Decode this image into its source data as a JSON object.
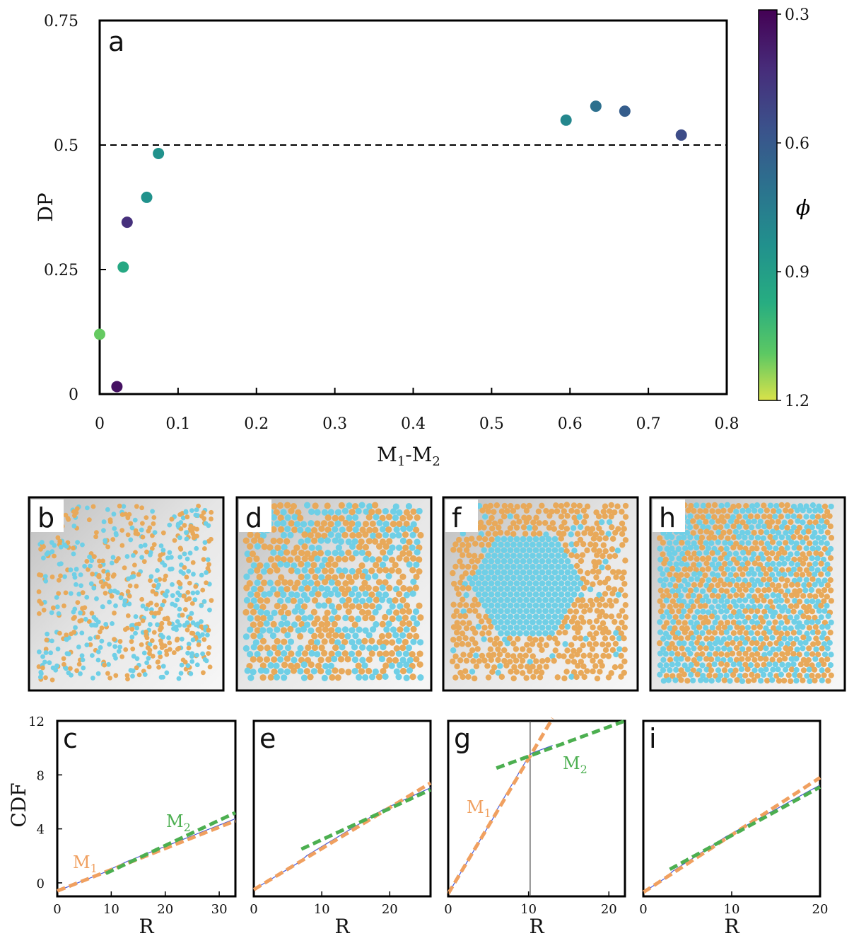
{
  "chart_data": [
    {
      "panel": "a",
      "type": "scatter",
      "xlabel": "M₁-M₂",
      "ylabel": "DP",
      "xlim": [
        0,
        0.8
      ],
      "ylim": [
        0,
        0.75
      ],
      "xticks": [
        "0",
        "0.1",
        "0.2",
        "0.3",
        "0.4",
        "0.5",
        "0.6",
        "0.7",
        "0.8"
      ],
      "yticks": [
        "0",
        "0.25",
        "0.5",
        "0.75"
      ],
      "reference_line": {
        "y": 0.5,
        "style": "dashed"
      },
      "colorbar": {
        "label": "ϕ",
        "range": [
          0.3,
          1.2
        ],
        "ticks": [
          "0.3",
          "0.6",
          "0.9",
          "1.2"
        ],
        "colormap": "viridis"
      },
      "points": [
        {
          "x": 0.0,
          "y": 0.12,
          "phi": 1.1
        },
        {
          "x": 0.022,
          "y": 0.015,
          "phi": 0.35
        },
        {
          "x": 0.03,
          "y": 0.255,
          "phi": 0.95
        },
        {
          "x": 0.035,
          "y": 0.345,
          "phi": 0.45
        },
        {
          "x": 0.06,
          "y": 0.395,
          "phi": 0.85
        },
        {
          "x": 0.075,
          "y": 0.483,
          "phi": 0.85
        },
        {
          "x": 0.595,
          "y": 0.55,
          "phi": 0.8
        },
        {
          "x": 0.633,
          "y": 0.578,
          "phi": 0.7
        },
        {
          "x": 0.67,
          "y": 0.568,
          "phi": 0.62
        },
        {
          "x": 0.742,
          "y": 0.52,
          "phi": 0.55
        }
      ]
    },
    {
      "panel": "c",
      "type": "line",
      "xlabel": "R",
      "ylabel": "CDF",
      "xlim": [
        0,
        33
      ],
      "ylim": [
        -1,
        12
      ],
      "xticks": [
        "0",
        "10",
        "20",
        "30"
      ],
      "yticks": [
        "0",
        "4",
        "8",
        "12"
      ],
      "labels": [
        "M₁",
        "M₂"
      ],
      "fits": {
        "M1": {
          "x": [
            0,
            33
          ],
          "y": [
            -0.6,
            4.6
          ]
        },
        "M2": {
          "x": [
            9,
            33
          ],
          "y": [
            0.7,
            5.2
          ]
        }
      }
    },
    {
      "panel": "e",
      "type": "line",
      "xlabel": "R",
      "xlim": [
        0,
        26
      ],
      "ylim": [
        -1,
        12
      ],
      "xticks": [
        "0",
        "10",
        "20"
      ],
      "fits": {
        "M1": {
          "x": [
            0,
            26
          ],
          "y": [
            -0.5,
            7.4
          ]
        },
        "M2": {
          "x": [
            7,
            26
          ],
          "y": [
            2.5,
            6.9
          ]
        }
      }
    },
    {
      "panel": "g",
      "type": "line",
      "xlabel": "R",
      "xlim": [
        0,
        22
      ],
      "ylim": [
        -1,
        12
      ],
      "xticks": [
        "0",
        "10",
        "20"
      ],
      "vline": 10.2,
      "labels": [
        "M₁",
        "M₂"
      ],
      "fits": {
        "M1": {
          "x": [
            0,
            13
          ],
          "y": [
            -0.8,
            12.2
          ]
        },
        "M2": {
          "x": [
            6,
            22
          ],
          "y": [
            8.5,
            12
          ]
        }
      }
    },
    {
      "panel": "i",
      "type": "line",
      "xlabel": "R",
      "xlim": [
        0,
        20
      ],
      "ylim": [
        -1,
        12
      ],
      "xticks": [
        "0",
        "10",
        "20"
      ],
      "fits": {
        "M1": {
          "x": [
            0,
            20
          ],
          "y": [
            -0.7,
            7.8
          ]
        },
        "M2": {
          "x": [
            3,
            20
          ],
          "y": [
            1.0,
            7.1
          ]
        }
      }
    }
  ],
  "snapshots": [
    {
      "letter": "b"
    },
    {
      "letter": "d"
    },
    {
      "letter": "f"
    },
    {
      "letter": "h"
    }
  ],
  "colors": {
    "m1_fit": "#f0a060",
    "m2_fit": "#4caf50",
    "cdf_curve": "#4a5ad8",
    "orange_particle": "#e8a95a",
    "blue_particle": "#6fcfe6"
  }
}
